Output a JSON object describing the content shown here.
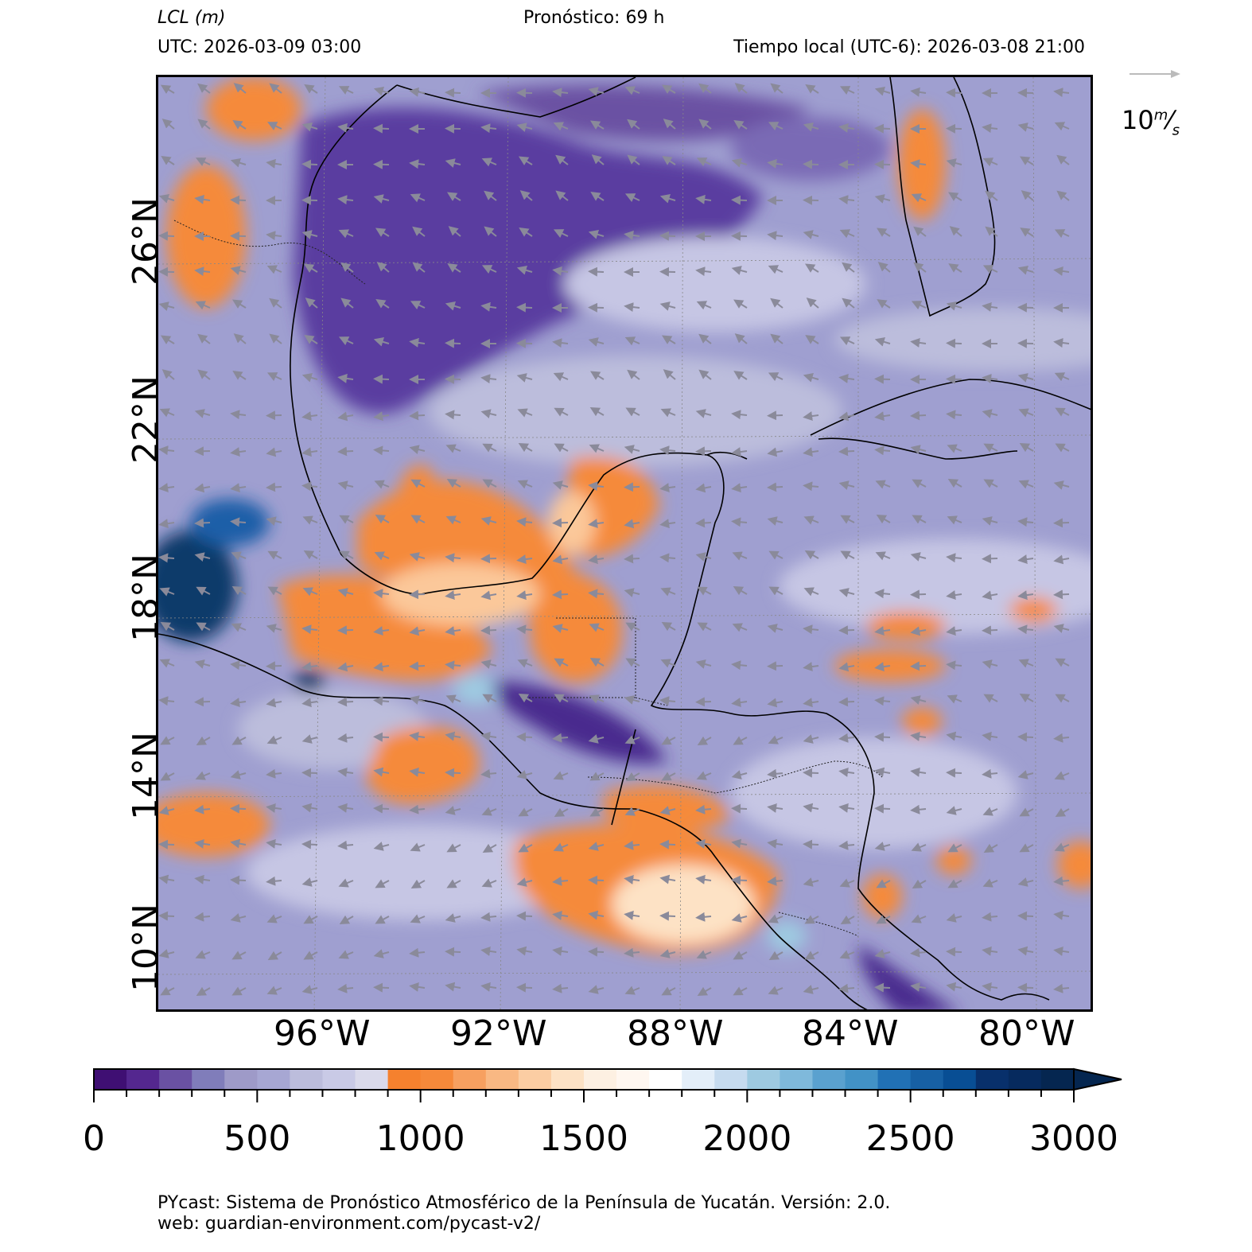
{
  "header": {
    "variable_title": "LCL (m)",
    "forecast": "Pronóstico: 69 h",
    "utc": "UTC:  2026-03-09 03:00",
    "local_time": "Tiempo local (UTC-6): 2026-03-08 21:00"
  },
  "map": {
    "lat_labels": [
      "26°N",
      "22°N",
      "18°N",
      "14°N",
      "10°N"
    ],
    "lon_labels": [
      "96°W",
      "92°W",
      "88°W",
      "84°W",
      "80°W"
    ],
    "wind_reference": "10m/s",
    "colors": {
      "ocean_low": "#5a3ea0",
      "ocean_mid": "#9f9fd0",
      "ocean_light": "#c6c6e4",
      "orange": "#f58a3a",
      "orange_light": "#fbc89a",
      "blue_high": "#1f5fa8",
      "blue_dark": "#0d3a6b"
    }
  },
  "colorbar": {
    "min": 0,
    "max": 3000,
    "step": 100,
    "tick_labels": [
      "0",
      "500",
      "1000",
      "1500",
      "2000",
      "2500",
      "3000"
    ],
    "colors": [
      "#3f0f73",
      "#54278f",
      "#6a51a3",
      "#807dba",
      "#9e9ac8",
      "#a7a7d3",
      "#bcbddc",
      "#c9cae6",
      "#dadaeb",
      "#f5812e",
      "#f6893a",
      "#f7a060",
      "#f9b883",
      "#fbcda3",
      "#fde2c5",
      "#fdf0e2",
      "#fff7f0",
      "#ffffff",
      "#e3eef9",
      "#c6dbef",
      "#9ecae1",
      "#7fb9db",
      "#5aa1cf",
      "#4292c6",
      "#2171b5",
      "#1760a4",
      "#084e94",
      "#08306b",
      "#062a5e",
      "#052650"
    ]
  },
  "footer": {
    "line1": "PYcast: Sistema de Pronóstico Atmosférico de la Península de Yucatán. Versión: 2.0.",
    "line2": "web: guardian-environment.com/pycast-v2/"
  }
}
